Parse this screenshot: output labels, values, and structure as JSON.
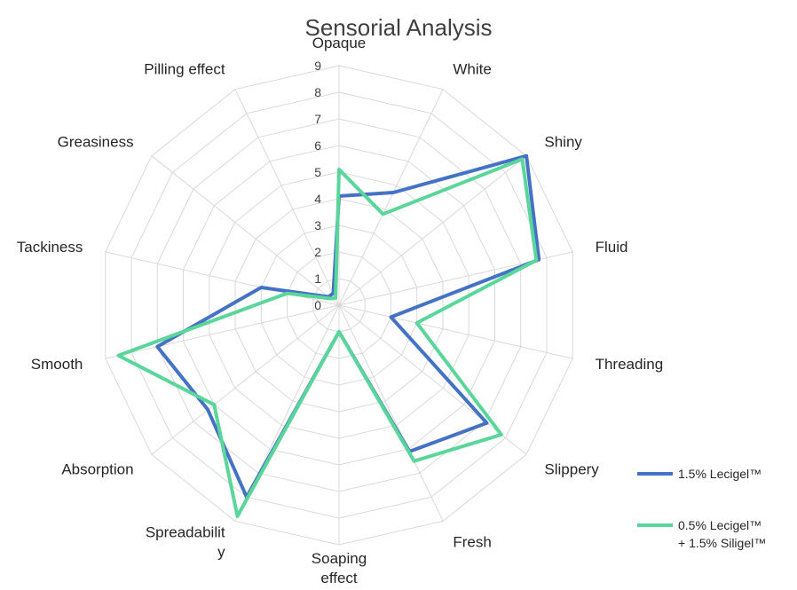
{
  "chart_data": {
    "type": "radar",
    "title": "Sensorial Analysis",
    "categories": [
      "Opaque",
      "White",
      "Shiny",
      "Fluid",
      "Threading",
      "Slippery",
      "Fresh",
      "Soaping effect",
      "Spreadability",
      "Absorption",
      "Smooth",
      "Tackiness",
      "Greasiness",
      "Pilling effect"
    ],
    "category_label_lines": [
      [
        "Opaque"
      ],
      [
        "White"
      ],
      [
        "Shiny"
      ],
      [
        "Fluid"
      ],
      [
        "Threading"
      ],
      [
        "Slippery"
      ],
      [
        "Fresh"
      ],
      [
        "Soaping",
        "effect"
      ],
      [
        "Spreadabilit",
        "y"
      ],
      [
        "Absorption"
      ],
      [
        "Smooth"
      ],
      [
        "Tackiness"
      ],
      [
        "Greasiness"
      ],
      [
        "Pilling effect"
      ]
    ],
    "rlim": [
      0,
      9
    ],
    "ticks": [
      "0",
      "1",
      "2",
      "3",
      "4",
      "5",
      "6",
      "7",
      "8",
      "9"
    ],
    "grid": true,
    "legend_position": "bottom-right",
    "series": [
      {
        "name": "1.5% Lecigel™",
        "legend_lines": [
          "1.5% Lecigel™"
        ],
        "color": "#4472C4",
        "values": [
          4.1,
          4.7,
          9.0,
          7.7,
          2.0,
          7.1,
          6.1,
          1.0,
          8.0,
          6.3,
          7.0,
          3.0,
          0.5,
          0.5
        ]
      },
      {
        "name": "0.5% Lecigel™ + 1.5% Siligel™",
        "legend_lines": [
          "0.5% Lecigel™",
          "+ 1.5% Siligel™"
        ],
        "color": "#5BD69A",
        "values": [
          5.1,
          3.8,
          8.8,
          7.6,
          3.0,
          7.8,
          6.5,
          1.0,
          8.8,
          6.0,
          8.5,
          2.0,
          0.4,
          0.3
        ]
      }
    ]
  }
}
